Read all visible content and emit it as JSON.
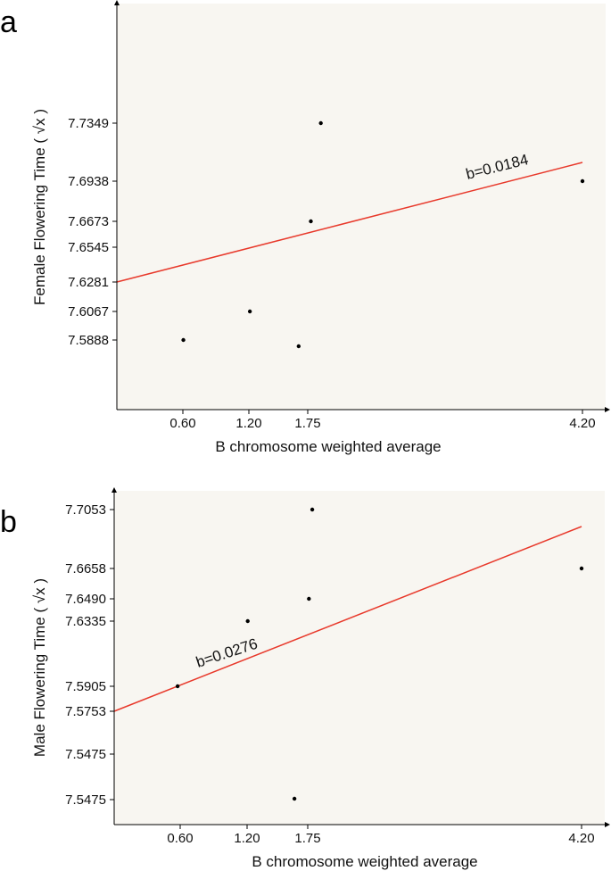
{
  "chart_data": [
    {
      "panel_label": "a",
      "type": "scatter",
      "xlabel": "B chromosome weighted average",
      "ylabel": "Female Flowering Time ( √x )",
      "x_ticks": [
        "0.60",
        "1.20",
        "1.75",
        "4.20"
      ],
      "y_ticks": [
        "7.7349",
        "7.6938",
        "7.6673",
        "7.6545",
        "7.6281",
        "7.6067",
        "7.5888"
      ],
      "points": [
        {
          "x": 1.84,
          "y": 7.7349
        },
        {
          "x": 4.2,
          "y": 7.6938
        },
        {
          "x": 1.75,
          "y": 7.6673
        },
        {
          "x": 1.2,
          "y": 7.6067
        },
        {
          "x": 0.6,
          "y": 7.5888
        },
        {
          "x": 1.64,
          "y": 7.5835
        }
      ],
      "regression": {
        "x1": 0.0,
        "y1": 7.6281,
        "x2": 4.2,
        "y2": 7.7054
      },
      "annotation": "b=0.0184",
      "line_color": "#e8392b",
      "point_color": "#000000",
      "background": "#f8f6f1",
      "grid": false
    },
    {
      "panel_label": "b",
      "type": "scatter",
      "xlabel": "B chromosome weighted average",
      "ylabel": "Male Flowering Time ( √x )",
      "x_ticks": [
        "0.60",
        "1.20",
        "1.75",
        "4.20"
      ],
      "y_ticks": [
        "7.7053",
        "7.6658",
        "7.6490",
        "7.6335",
        "7.5905",
        "7.5753",
        "7.5475",
        "7.5475"
      ],
      "points": [
        {
          "x": 1.78,
          "y": 7.7053
        },
        {
          "x": 4.2,
          "y": 7.6658
        },
        {
          "x": 1.75,
          "y": 7.649
        },
        {
          "x": 1.2,
          "y": 7.6335
        },
        {
          "x": 0.57,
          "y": 7.5905
        },
        {
          "x": 1.62,
          "y": 7.5475
        }
      ],
      "regression": {
        "x1": 0.0,
        "y1": 7.5753,
        "x2": 4.2,
        "y2": 7.6913
      },
      "annotation": "b=0.0276",
      "line_color": "#e8392b",
      "point_color": "#000000",
      "background": "#f8f6f1",
      "grid": false
    }
  ]
}
